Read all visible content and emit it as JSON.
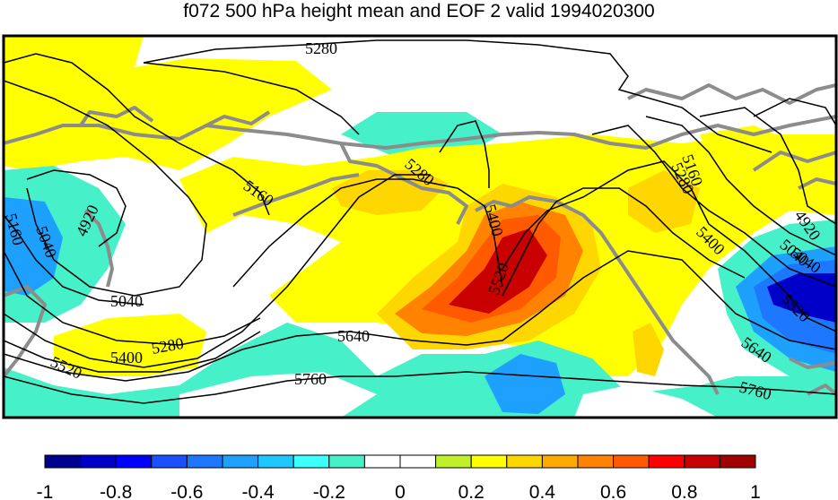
{
  "title": "f072 500 hPa height mean and EOF 2 valid 1994020300",
  "contour_labels": [
    "5280",
    "5160",
    "5160",
    "5040",
    "5040",
    "4920",
    "5040",
    "5520",
    "5400",
    "5280",
    "5280",
    "5400",
    "5520",
    "5640",
    "5760",
    "5160",
    "5280",
    "5400",
    "4920",
    "5040",
    "5520",
    "5640",
    "5760"
  ],
  "colorbar": {
    "min": -1,
    "max": 1,
    "step": 0.1,
    "tick_labels": [
      "-1",
      "-0.8",
      "-0.6",
      "-0.4",
      "-0.2",
      "0",
      "0.2",
      "0.4",
      "0.6",
      "0.8",
      "1"
    ],
    "colors": [
      "#00008f",
      "#0000c8",
      "#0000ff",
      "#1c4fff",
      "#1e78ff",
      "#1ea0ff",
      "#1ec8ff",
      "#3cffff",
      "#46f0c8",
      "#ffffff",
      "#ffffff",
      "#bff02a",
      "#ffff00",
      "#ffd700",
      "#ffaa00",
      "#ff8200",
      "#ff5a00",
      "#ff0000",
      "#c80000",
      "#a00000"
    ]
  },
  "legend_colors": {
    "teal": "#46f0c8",
    "light_blue": "#1ea0ff",
    "blue": "#1e78ff",
    "dark_blue": "#0000c8",
    "yellow": "#ffff00",
    "gold": "#ffd700",
    "orange": "#ff8200",
    "red_orange": "#ff5a00",
    "dark_red": "#c80000",
    "coastline": "#8c8c8c"
  }
}
